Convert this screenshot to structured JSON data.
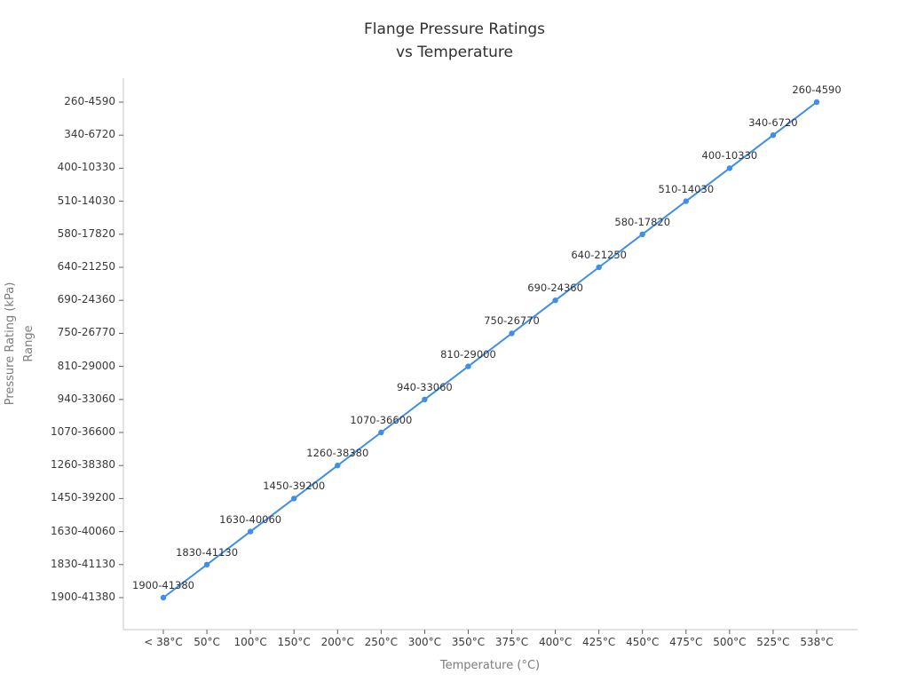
{
  "title": {
    "line1": "Flange Pressure Ratings",
    "line2": "vs Temperature"
  },
  "chart_data": {
    "type": "line",
    "title": "Flange Pressure Ratings vs Temperature",
    "xlabel": "Temperature (°C)",
    "ylabel": "Pressure Rating (kPa) Range",
    "ylabel_lines": [
      "Pressure Rating (kPa)",
      "Range"
    ],
    "categories": [
      "< 38°C",
      "50°C",
      "100°C",
      "150°C",
      "200°C",
      "250°C",
      "300°C",
      "350°C",
      "375°C",
      "400°C",
      "425°C",
      "450°C",
      "475°C",
      "500°C",
      "525°C",
      "538°C"
    ],
    "values": [
      "1900-41380",
      "1830-41130",
      "1630-40060",
      "1450-39200",
      "1260-38380",
      "1070-36600",
      "940-33060",
      "810-29000",
      "750-26770",
      "690-24360",
      "640-21250",
      "580-17820",
      "510-14030",
      "400-10330",
      "340-6720",
      "260-4590"
    ],
    "y_tick_labels_top_to_bottom": [
      "260-4590",
      "340-6720",
      "400-10330",
      "510-14030",
      "580-17820",
      "640-21250",
      "690-24360",
      "750-26770",
      "810-29000",
      "940-33060",
      "1070-36600",
      "1260-38380",
      "1450-39200",
      "1630-40060",
      "1830-41130",
      "1900-41380"
    ],
    "point_labels_visible": true,
    "legend": "none",
    "grid": false,
    "colors": {
      "line": "#3f8eea",
      "marker": "#3f8eea",
      "spine": "#d0d0d0",
      "tick_mark": "#5f5f5f",
      "tick_text": "#3a3a3a",
      "point_label_text": "#333333",
      "axis_title_text": "#7c7c7c",
      "title_text": "#2f2f2f",
      "background": "#ffffff"
    }
  }
}
